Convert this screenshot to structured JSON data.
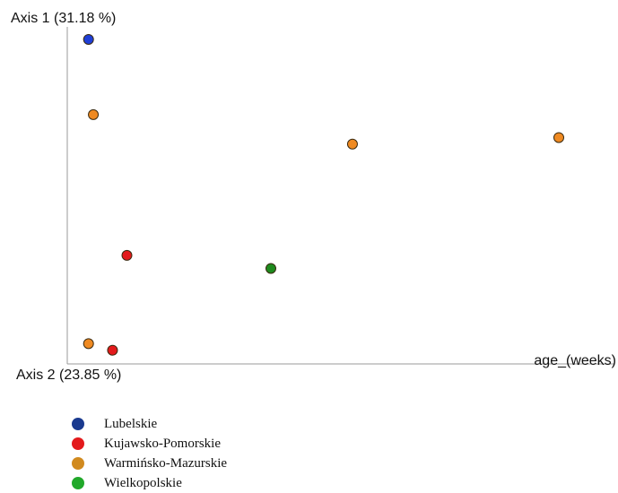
{
  "chart_data": {
    "type": "scatter",
    "ylabel": "Axis 1 (31.18 %)",
    "ylabel2": "Axis 2 (23.85 %)",
    "xlabel": "age_(weeks)",
    "grid": false,
    "legend_position": "bottom-left",
    "series": [
      {
        "name": "Lubelskie",
        "color": "#1a3a8f",
        "fill": "#1f3fd6",
        "points": [
          {
            "x": 2,
            "y": 97
          }
        ]
      },
      {
        "name": "Kujawsko-Pomorskie",
        "color": "#e31a1c",
        "fill": "#e31a1c",
        "points": [
          {
            "x": 10,
            "y": 31
          },
          {
            "x": 7,
            "y": 2
          }
        ]
      },
      {
        "name": "Warmińsko-Mazurskie",
        "color": "#d18a1f",
        "fill": "#ef8a22",
        "points": [
          {
            "x": 3,
            "y": 74
          },
          {
            "x": 57,
            "y": 65
          },
          {
            "x": 100,
            "y": 67
          },
          {
            "x": 2,
            "y": 4
          }
        ]
      },
      {
        "name": "Wielkopolskie",
        "color": "#21a82a",
        "fill": "#1e8a1e",
        "points": [
          {
            "x": 40,
            "y": 27
          }
        ]
      }
    ],
    "xlim": [
      0,
      100
    ],
    "ylim": [
      0,
      100
    ]
  }
}
